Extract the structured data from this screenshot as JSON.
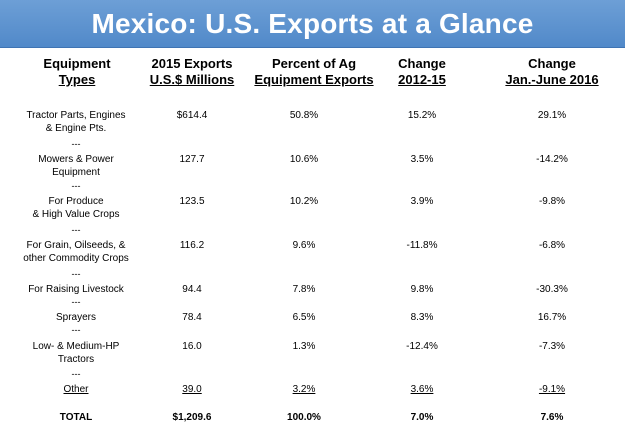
{
  "title": "Mexico: U.S. Exports at a Glance",
  "headers": [
    {
      "line1": "Equipment",
      "line2": "Types"
    },
    {
      "line1": "2015 Exports",
      "line2": "U.S.$ Millions"
    },
    {
      "line1": "Percent of Ag",
      "line2": "Equipment Exports"
    },
    {
      "line1": "Change",
      "line2": "2012-15"
    },
    {
      "line1": "Change",
      "line2": "Jan.-June 2016"
    }
  ],
  "separator": "---",
  "rows": [
    {
      "type": [
        "Tractor Parts, Engines",
        "& Engine Pts."
      ],
      "exports": "$614.4",
      "percent": "50.8%",
      "change_2012_15": "15.2%",
      "change_2016": "29.1%"
    },
    {
      "type": [
        "Mowers & Power",
        "Equipment"
      ],
      "exports": "127.7",
      "percent": "10.6%",
      "change_2012_15": "3.5%",
      "change_2016": "-14.2%"
    },
    {
      "type": [
        "For Produce",
        "& High Value Crops"
      ],
      "exports": "123.5",
      "percent": "10.2%",
      "change_2012_15": "3.9%",
      "change_2016": "-9.8%"
    },
    {
      "type": [
        "For Grain, Oilseeds, &",
        "other Commodity Crops"
      ],
      "exports": "116.2",
      "percent": "9.6%",
      "change_2012_15": "-11.8%",
      "change_2016": "-6.8%"
    },
    {
      "type": [
        "For Raising Livestock"
      ],
      "exports": "94.4",
      "percent": "7.8%",
      "change_2012_15": "9.8%",
      "change_2016": "-30.3%"
    },
    {
      "type": [
        "Sprayers"
      ],
      "exports": "78.4",
      "percent": "6.5%",
      "change_2012_15": "8.3%",
      "change_2016": "16.7%"
    },
    {
      "type": [
        "Low- & Medium-HP",
        "Tractors"
      ],
      "exports": "16.0",
      "percent": "1.3%",
      "change_2012_15": "-12.4%",
      "change_2016": "-7.3%"
    },
    {
      "type": [
        "Other"
      ],
      "exports": "39.0",
      "percent": "3.2%",
      "change_2012_15": "3.6%",
      "change_2016": "-9.1%"
    }
  ],
  "total": {
    "type": "TOTAL",
    "exports": "$1,209.6",
    "percent": "100.0%",
    "change_2012_15": "7.0%",
    "change_2016": "7.6%"
  },
  "colors": {
    "banner": "#5a90cf",
    "banner_text": "#ffffff"
  }
}
